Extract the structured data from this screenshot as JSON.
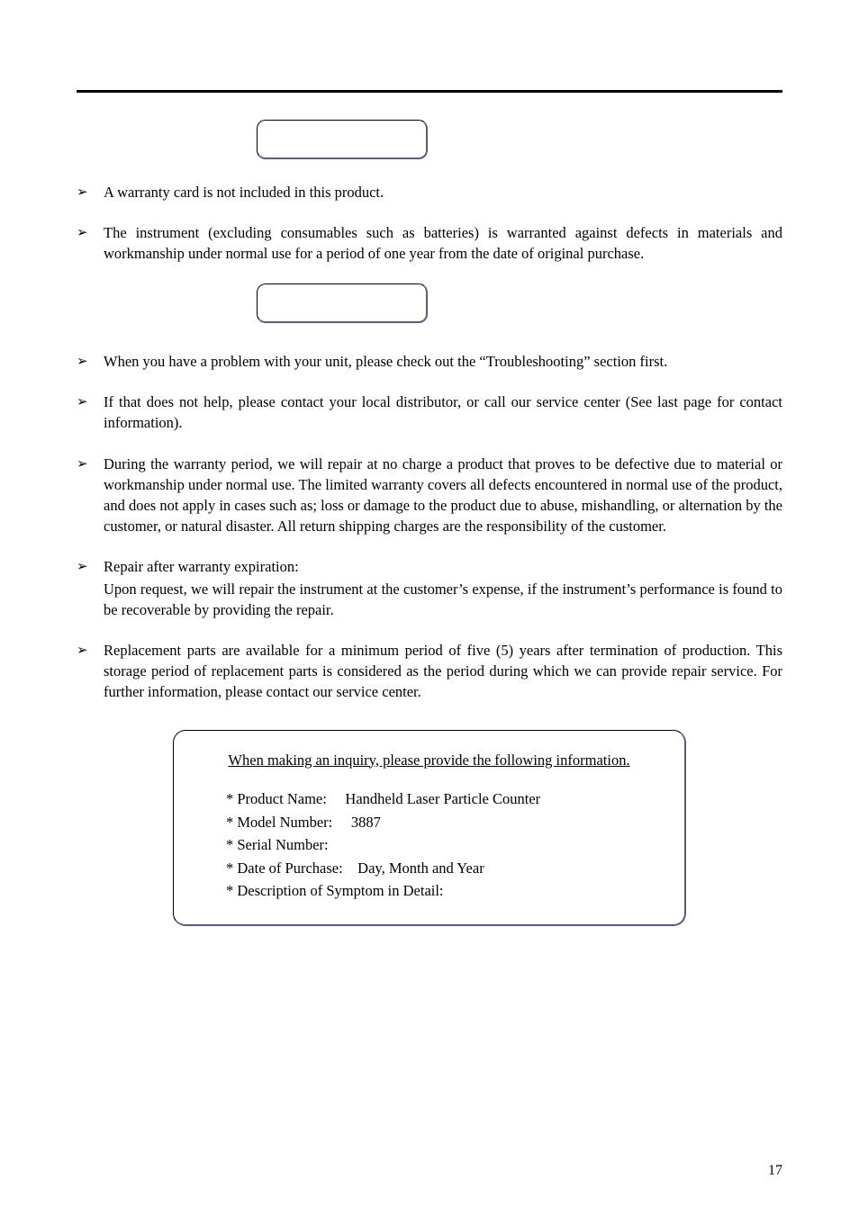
{
  "bullets": {
    "b1": "A warranty card is not included in this product.",
    "b2": "The instrument (excluding consumables such as batteries) is warranted against defects in materials and workmanship under normal use for a period of one year from the date of original purchase.",
    "b3": "When you have a problem with your unit, please check out the “Troubleshooting” section first.",
    "b4": "If that does not help, please contact your local distributor, or call our service center (See last page for contact information).",
    "b5": "During the warranty period, we will repair at no charge a product that proves to be defective due to material or workmanship under normal use. The limited warranty covers all defects encountered in normal use of the product, and does not apply in cases such as; loss or damage to the product due to abuse, mishandling, or alternation by the customer, or natural disaster. All return shipping charges are the responsibility of the customer.",
    "b6_head": "Repair after warranty expiration:",
    "b6_body": "Upon request, we will repair the instrument at the customer’s expense, if the instrument’s performance is found to be recoverable by providing the repair.",
    "b7": "Replacement parts are available for a minimum period of five (5) years after termination of production. This storage period of replacement parts is considered as the period during which we can provide repair service. For further information, please contact our service center."
  },
  "infobox": {
    "title": "When making an inquiry, please provide the following information.",
    "l1": "* Product Name:  Handheld Laser Particle Counter",
    "l2": "* Model Number:   3887",
    "l3": "* Serial Number:",
    "l4": "* Date of Purchase: Day, Month and Year",
    "l5": "* Description of Symptom in Detail:"
  },
  "page_number": "17",
  "glyph": "➢"
}
